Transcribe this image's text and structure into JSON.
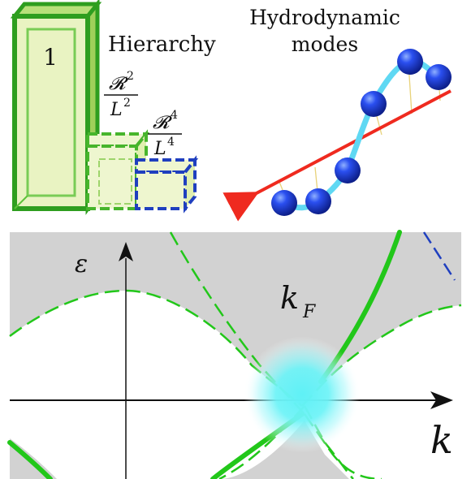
{
  "top_left": {
    "box_label": "1",
    "title": "Hierarchy",
    "frac2": {
      "num": "𝓡",
      "num_exp": "2",
      "den": "L",
      "den_exp": "2"
    },
    "frac4": {
      "num": "𝓡",
      "num_exp": "4",
      "den": "L",
      "den_exp": "4"
    }
  },
  "top_right": {
    "title_line1": "Hydrodynamic",
    "title_line2": "modes"
  },
  "bottom": {
    "y_axis_label": "ε",
    "x_axis_label": "k",
    "fermi_label": "k",
    "fermi_sub": "F"
  },
  "colors": {
    "panel_gray": "#d2d2d2",
    "green_dark": "#2e9e1f",
    "green_bright": "#22c71a",
    "green_light": "#e9f3c2",
    "blue_dash": "#1f3fbf",
    "ball_blue": "#1b3ed8",
    "spring_cyan": "#5fd8f3",
    "arrow_red": "#ef2a1f",
    "glow_cyan": "#5ff1f6"
  }
}
